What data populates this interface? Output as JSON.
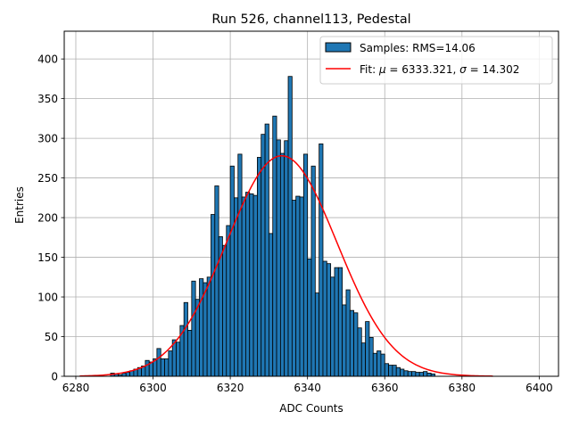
{
  "chart_data": {
    "type": "bar",
    "title": "Run 526, channel113, Pedestal",
    "xlabel": "ADC Counts",
    "ylabel": "Entries",
    "xlim": [
      6277,
      6405
    ],
    "ylim": [
      0,
      435
    ],
    "xticks": [
      6280,
      6300,
      6320,
      6340,
      6360,
      6380,
      6400
    ],
    "yticks": [
      0,
      50,
      100,
      150,
      200,
      250,
      300,
      350,
      400
    ],
    "grid": true,
    "legend_position": "top-right",
    "bin_width": 1,
    "bin_start": 6289,
    "values": [
      4,
      3,
      2,
      4,
      5,
      7,
      9,
      11,
      13,
      20,
      18,
      22,
      35,
      22,
      22,
      32,
      46,
      43,
      64,
      93,
      58,
      120,
      97,
      123,
      118,
      125,
      204,
      240,
      176,
      165,
      190,
      265,
      225,
      280,
      226,
      232,
      230,
      228,
      276,
      305,
      318,
      180,
      328,
      298,
      281,
      297,
      378,
      222,
      227,
      226,
      280,
      148,
      265,
      105,
      293,
      145,
      142,
      125,
      137,
      137,
      90,
      109,
      83,
      80,
      61,
      42,
      69,
      49,
      29,
      32,
      28,
      16,
      14,
      14,
      11,
      9,
      7,
      6,
      6,
      5,
      5,
      6,
      4,
      3
    ],
    "series": [
      {
        "name": "Samples: RMS=14.06",
        "kind": "histogram",
        "color": "#1f77b4",
        "edge_color": "#000000"
      },
      {
        "name": "Fit",
        "kind": "line",
        "color": "#ff0000",
        "mu": 6333.321,
        "sigma": 14.302,
        "amplitude": 278,
        "x_range": [
          6281,
          6388
        ]
      }
    ],
    "legend": {
      "samples_label": "Samples: RMS=14.06",
      "fit_label_prefix": "Fit: ",
      "mu_symbol": "μ",
      "mu_text": " = 6333.321, ",
      "sigma_symbol": "σ",
      "sigma_text": " = 14.302"
    }
  }
}
